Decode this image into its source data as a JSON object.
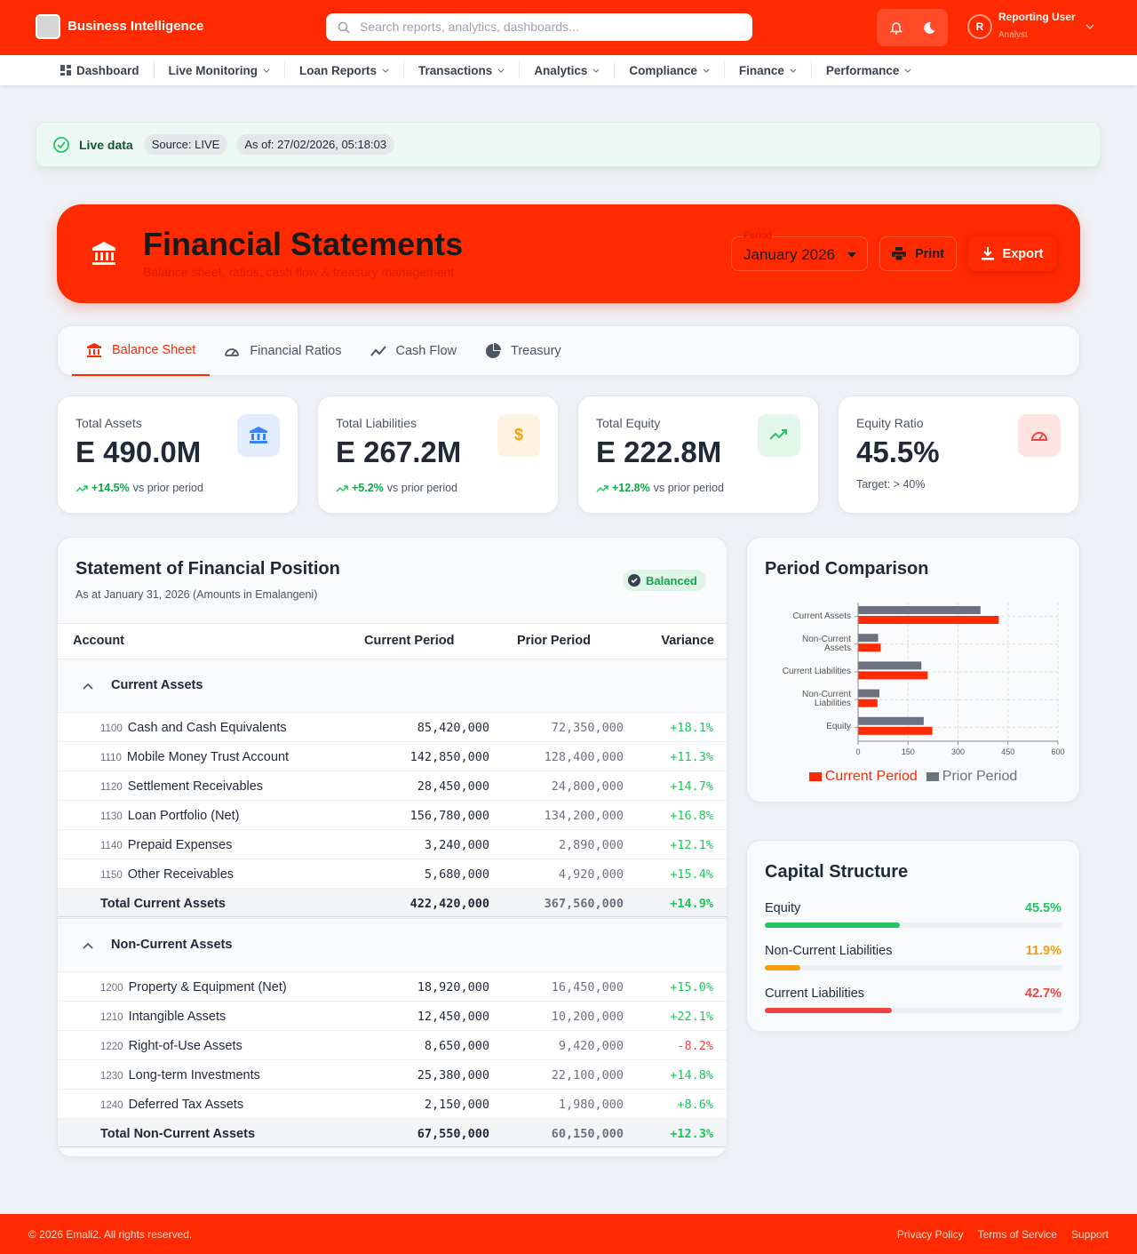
{
  "header": {
    "brand": "Business Intelligence",
    "search_placeholder": "Search reports, analytics, dashboards...",
    "user_initial": "R",
    "user_name": "Reporting User",
    "user_role": "Analyst"
  },
  "nav": [
    "Dashboard",
    "Live Monitoring",
    "Loan Reports",
    "Transactions",
    "Analytics",
    "Compliance",
    "Finance",
    "Performance"
  ],
  "status": {
    "label": "Live data",
    "source": "Source: LIVE",
    "as_of": "As of: 27/02/2026, 05:18:03"
  },
  "hero": {
    "title": "Financial Statements",
    "subtitle": "Balance sheet, ratios, cash flow & treasury management",
    "period_label": "Period",
    "period": "January 2026",
    "print": "Print",
    "export": "Export"
  },
  "tabs": [
    "Balance Sheet",
    "Financial Ratios",
    "Cash Flow",
    "Treasury"
  ],
  "kpis": [
    {
      "label": "Total Assets",
      "value": "E 490.0M",
      "change": "+14.5%",
      "note": "vs prior period"
    },
    {
      "label": "Total Liabilities",
      "value": "E 267.2M",
      "change": "+5.2%",
      "note": "vs prior period"
    },
    {
      "label": "Total Equity",
      "value": "E 222.8M",
      "change": "+12.8%",
      "note": "vs prior period"
    },
    {
      "label": "Equity Ratio",
      "value": "45.5%",
      "note": "Target: > 40%"
    }
  ],
  "statement": {
    "title": "Statement of Financial Position",
    "subtitle": "As at January 31, 2026 (Amounts in Emalangeni)",
    "badge": "Balanced",
    "columns": [
      "Account",
      "Current Period",
      "Prior Period",
      "Variance"
    ],
    "sections": [
      {
        "name": "Current Assets",
        "rows": [
          [
            "1100",
            "Cash and Cash Equivalents",
            "85,420,000",
            "72,350,000",
            "+18.1%"
          ],
          [
            "1110",
            "Mobile Money Trust Account",
            "142,850,000",
            "128,400,000",
            "+11.3%"
          ],
          [
            "1120",
            "Settlement Receivables",
            "28,450,000",
            "24,800,000",
            "+14.7%"
          ],
          [
            "1130",
            "Loan Portfolio (Net)",
            "156,780,000",
            "134,200,000",
            "+16.8%"
          ],
          [
            "1140",
            "Prepaid Expenses",
            "3,240,000",
            "2,890,000",
            "+12.1%"
          ],
          [
            "1150",
            "Other Receivables",
            "5,680,000",
            "4,920,000",
            "+15.4%"
          ]
        ],
        "total": [
          "Total Current Assets",
          "422,420,000",
          "367,560,000",
          "+14.9%"
        ]
      },
      {
        "name": "Non-Current Assets",
        "rows": [
          [
            "1200",
            "Property & Equipment (Net)",
            "18,920,000",
            "16,450,000",
            "+15.0%"
          ],
          [
            "1210",
            "Intangible Assets",
            "12,450,000",
            "10,200,000",
            "+22.1%"
          ],
          [
            "1220",
            "Right-of-Use Assets",
            "8,650,000",
            "9,420,000",
            "-8.2%"
          ],
          [
            "1230",
            "Long-term Investments",
            "25,380,000",
            "22,100,000",
            "+14.8%"
          ],
          [
            "1240",
            "Deferred Tax Assets",
            "2,150,000",
            "1,980,000",
            "+8.6%"
          ]
        ],
        "total": [
          "Total Non-Current Assets",
          "67,550,000",
          "60,150,000",
          "+12.3%"
        ]
      }
    ]
  },
  "chart_data": [
    {
      "type": "bar",
      "orientation": "horizontal",
      "title": "Period Comparison",
      "categories": [
        "Current Assets",
        "Non-Current Assets",
        "Current Liabilities",
        "Non-Current Liabilities",
        "Equity"
      ],
      "series": [
        {
          "name": "Current Period",
          "color": "#ff2a00",
          "values": [
            422.4,
            67.6,
            209.2,
            58.0,
            222.8
          ]
        },
        {
          "name": "Prior Period",
          "color": "#6b7280",
          "values": [
            367.6,
            60.2,
            190,
            64,
            197
          ]
        }
      ],
      "xlim": [
        0,
        600
      ],
      "xticks": [
        0,
        150,
        300,
        450,
        600
      ],
      "grid": true,
      "legend": "bottom"
    },
    {
      "type": "progress",
      "title": "Capital Structure",
      "categories": [
        "Equity",
        "Non-Current Liabilities",
        "Current Liabilities"
      ],
      "values": [
        45.5,
        11.9,
        42.7
      ],
      "value_labels": [
        "45.5%",
        "11.9%",
        "42.7%"
      ],
      "colors": [
        "#22c55e",
        "#f59e0b",
        "#ef4444"
      ],
      "xlim": [
        0,
        100
      ]
    }
  ],
  "footer": {
    "copyright": "© 2026 Emali2. All rights reserved.",
    "links": [
      "Privacy Policy",
      "Terms of Service",
      "Support"
    ]
  }
}
